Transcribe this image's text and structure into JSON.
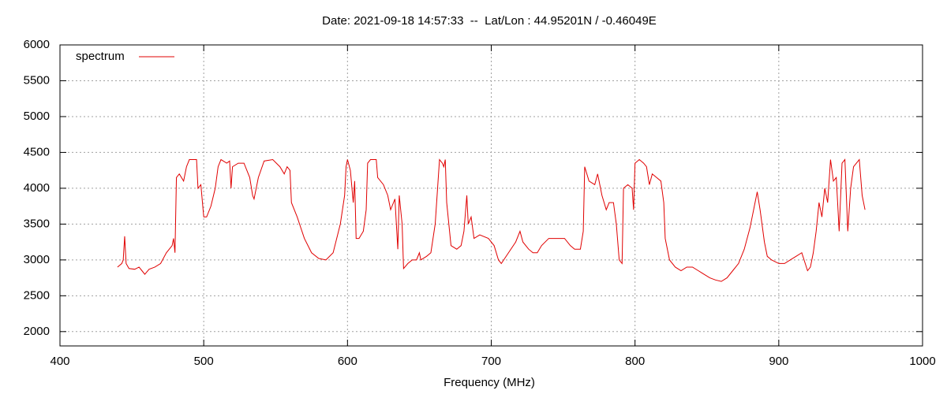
{
  "chart_data": {
    "type": "line",
    "title": "Date: 2021-09-18 14:57:33  --  Lat/Lon : 44.95201N / -0.46049E",
    "x_label": "Frequency (MHz)",
    "xlim": [
      400,
      1000
    ],
    "xticks": [
      400,
      500,
      600,
      700,
      800,
      900,
      1000
    ],
    "ylim": [
      1800,
      6000
    ],
    "yticks": [
      2000,
      2500,
      3000,
      3500,
      4000,
      4500,
      5000,
      5500,
      6000
    ],
    "grid": true,
    "legend": "top-left",
    "x": [
      440,
      443,
      444,
      445,
      446,
      448,
      452,
      455,
      457,
      459,
      462,
      466,
      470,
      474,
      478,
      479,
      480,
      481,
      483,
      486,
      488,
      490,
      495,
      496,
      498,
      500,
      502,
      505,
      508,
      510,
      512,
      516,
      518,
      519,
      520,
      524,
      528,
      532,
      534,
      535,
      538,
      542,
      548,
      553,
      556,
      558,
      560,
      561,
      565,
      570,
      575,
      580,
      585,
      590,
      595,
      598,
      599,
      600,
      602,
      604,
      605,
      606,
      608,
      611,
      613,
      614,
      616,
      620,
      621,
      625,
      628,
      630,
      633,
      635,
      636,
      638,
      639,
      642,
      645,
      648,
      650,
      651,
      655,
      658,
      661,
      664,
      666,
      667,
      668,
      669,
      672,
      676,
      679,
      681,
      683,
      684,
      686,
      688,
      692,
      698,
      702,
      705,
      707,
      712,
      717,
      720,
      722,
      726,
      729,
      732,
      735,
      740,
      746,
      751,
      755,
      758,
      762,
      764,
      765,
      768,
      772,
      774,
      777,
      780,
      782,
      785,
      787,
      789,
      791,
      792,
      795,
      798,
      799,
      800,
      803,
      806,
      808,
      810,
      812,
      815,
      818,
      820,
      821,
      824,
      828,
      832,
      836,
      840,
      844,
      848,
      852,
      856,
      860,
      864,
      868,
      872,
      876,
      880,
      884,
      885,
      887,
      890,
      892,
      895,
      900,
      904,
      908,
      912,
      916,
      920,
      922,
      924,
      926,
      928,
      930,
      932,
      934,
      936,
      938,
      940,
      942,
      944,
      946,
      948,
      950,
      952,
      954,
      956,
      958,
      960
    ],
    "series": [
      {
        "name": "spectrum",
        "color": "#e00000",
        "values": [
          2900,
          2950,
          3000,
          3330,
          2950,
          2880,
          2870,
          2900,
          2850,
          2800,
          2870,
          2900,
          2950,
          3100,
          3200,
          3300,
          3100,
          4150,
          4200,
          4100,
          4300,
          4400,
          4400,
          4000,
          4050,
          3600,
          3600,
          3750,
          4000,
          4300,
          4400,
          4350,
          4380,
          4000,
          4300,
          4350,
          4350,
          4150,
          3900,
          3850,
          4150,
          4380,
          4400,
          4300,
          4200,
          4300,
          4250,
          3800,
          3600,
          3300,
          3100,
          3020,
          3000,
          3100,
          3500,
          3900,
          4300,
          4400,
          4250,
          3800,
          4100,
          3300,
          3300,
          3400,
          3700,
          4350,
          4400,
          4400,
          4150,
          4050,
          3900,
          3700,
          3850,
          3150,
          3900,
          3500,
          2880,
          2950,
          3000,
          3000,
          3100,
          3000,
          3050,
          3100,
          3500,
          4400,
          4350,
          4300,
          4400,
          3800,
          3200,
          3150,
          3200,
          3400,
          3900,
          3500,
          3600,
          3300,
          3350,
          3300,
          3200,
          3000,
          2950,
          3100,
          3250,
          3400,
          3250,
          3150,
          3100,
          3100,
          3200,
          3300,
          3300,
          3300,
          3200,
          3150,
          3150,
          3400,
          4300,
          4100,
          4050,
          4200,
          3900,
          3700,
          3800,
          3800,
          3500,
          3000,
          2950,
          4000,
          4050,
          4000,
          3700,
          4350,
          4400,
          4350,
          4300,
          4050,
          4200,
          4150,
          4100,
          3800,
          3300,
          3000,
          2900,
          2850,
          2900,
          2900,
          2850,
          2800,
          2750,
          2720,
          2700,
          2750,
          2850,
          2950,
          3150,
          3450,
          3850,
          3950,
          3700,
          3250,
          3050,
          3000,
          2950,
          2950,
          3000,
          3050,
          3100,
          2850,
          2900,
          3100,
          3400,
          3800,
          3600,
          4000,
          3800,
          4400,
          4100,
          4150,
          3400,
          4350,
          4400,
          3400,
          4000,
          4300,
          4350,
          4400,
          3900,
          3700
        ]
      }
    ]
  }
}
